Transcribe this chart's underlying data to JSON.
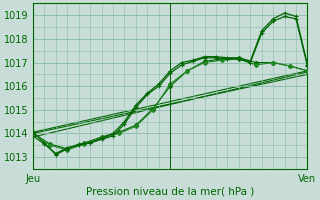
{
  "xlabel": "Pression niveau de la mer( hPa )",
  "bg_color": "#c8ddd8",
  "grid_color": "#88bbaa",
  "line_color_dark": "#006600",
  "line_color_mid": "#228822",
  "ylim": [
    1012.5,
    1019.5
  ],
  "xlim": [
    0,
    48
  ],
  "x_ticks": [
    0,
    24,
    48
  ],
  "x_tick_labels": [
    "Jeu",
    "",
    "Ven"
  ],
  "yticks": [
    1013,
    1014,
    1015,
    1016,
    1017,
    1018,
    1019
  ],
  "vline_x": 24,
  "trend_lines": [
    [
      [
        0,
        48
      ],
      [
        1014.0,
        1016.5
      ]
    ],
    [
      [
        0,
        48
      ],
      [
        1013.85,
        1016.6
      ]
    ],
    [
      [
        0,
        48
      ],
      [
        1014.05,
        1016.65
      ]
    ]
  ],
  "series_marked_x": [
    0,
    2,
    4,
    6,
    8,
    10,
    12,
    14,
    16,
    18,
    20,
    22,
    24,
    26,
    28,
    30,
    32,
    34,
    36,
    38,
    40,
    42,
    44,
    46,
    48
  ],
  "series_marked_y1": [
    1013.9,
    1013.55,
    1013.15,
    1013.4,
    1013.5,
    1013.6,
    1013.75,
    1013.9,
    1014.4,
    1015.1,
    1015.65,
    1016.0,
    1016.55,
    1016.9,
    1017.05,
    1017.2,
    1017.2,
    1017.15,
    1017.15,
    1017.0,
    1018.25,
    1018.75,
    1018.95,
    1018.85,
    1016.85
  ],
  "series_marked_y2": [
    1014.05,
    1013.6,
    1013.1,
    1013.35,
    1013.55,
    1013.6,
    1013.8,
    1014.0,
    1014.5,
    1015.2,
    1015.7,
    1016.1,
    1016.65,
    1017.0,
    1017.1,
    1017.25,
    1017.25,
    1017.2,
    1017.2,
    1017.05,
    1018.35,
    1018.85,
    1019.1,
    1018.95,
    1016.9
  ],
  "series_dashed_x": [
    0,
    3,
    6,
    9,
    12,
    15,
    18,
    21,
    24,
    27,
    30,
    33,
    36,
    39,
    42,
    45,
    48
  ],
  "series_dashed_y1": [
    1014.0,
    1013.55,
    1013.35,
    1013.6,
    1013.85,
    1014.05,
    1014.35,
    1015.05,
    1016.0,
    1016.65,
    1017.05,
    1017.15,
    1017.2,
    1017.0,
    1017.0,
    1016.85,
    1016.65
  ],
  "series_dashed_y2": [
    1014.05,
    1013.5,
    1013.3,
    1013.55,
    1013.8,
    1014.0,
    1014.3,
    1015.0,
    1016.1,
    1016.65,
    1017.0,
    1017.1,
    1017.15,
    1016.9,
    1017.0,
    1016.85,
    1016.65
  ]
}
